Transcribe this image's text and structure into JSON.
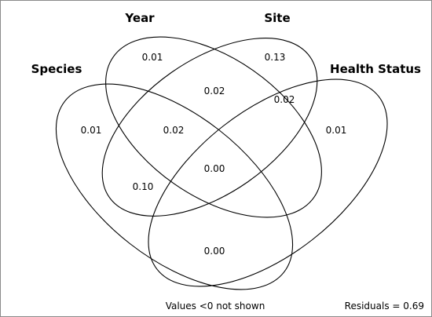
{
  "venn": {
    "sets": {
      "species": "Species",
      "year": "Year",
      "site": "Site",
      "health": "Health Status"
    },
    "regions": {
      "species_only": "0.01",
      "year_only": "0.01",
      "site_only": "0.13",
      "health_only": "0.01",
      "year_site": "0.02",
      "site_health": "0.02",
      "species_year": "0.02",
      "species_year_site_health": "0.00",
      "species_health": "0.10",
      "bottom_overlap": "0.00"
    },
    "notes": {
      "values_note": "Values <0 not shown",
      "residuals": "Residuals = 0.69"
    },
    "colors": {
      "stroke": "#000000",
      "frame": "#8a8a8a",
      "background": "#ffffff"
    }
  }
}
